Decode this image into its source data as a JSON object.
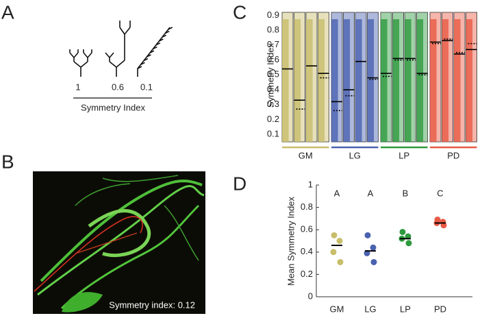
{
  "panel_labels": [
    "A",
    "B",
    "C",
    "D"
  ],
  "panel_a": {
    "labels": [
      "1",
      "0.6",
      "0.1"
    ],
    "axis_label": "Symmetry Index"
  },
  "panel_b": {
    "annotation": "Symmetry index: 0.12"
  },
  "chart_data": [
    {
      "type": "strip-histogram",
      "ylabel": "Symmetry Index",
      "ylim": [
        0.05,
        0.92
      ],
      "yticks": [
        0.1,
        0.2,
        0.3,
        0.4,
        0.5,
        0.6,
        0.7,
        0.8,
        0.9
      ],
      "groups": [
        {
          "name": "GM",
          "color": "#c8bd6a",
          "means": [
            0.54,
            0.33,
            0.56,
            0.51
          ],
          "medians": [
            null,
            0.27,
            0.56,
            0.48
          ]
        },
        {
          "name": "LG",
          "color": "#4a62b0",
          "means": [
            0.32,
            0.4,
            0.59,
            0.48
          ],
          "medians": [
            0.26,
            0.36,
            0.59,
            0.47
          ]
        },
        {
          "name": "LP",
          "color": "#2e9a3e",
          "means": [
            0.51,
            0.61,
            0.61,
            0.51
          ],
          "medians": [
            0.49,
            0.6,
            0.6,
            0.5
          ]
        },
        {
          "name": "PD",
          "color": "#e85a45",
          "means": [
            0.72,
            0.73,
            0.64,
            0.67
          ],
          "medians": [
            0.71,
            0.74,
            0.65,
            0.71
          ]
        }
      ]
    },
    {
      "type": "dot",
      "ylabel": "Mean Symmetry Index",
      "ylim": [
        0,
        1
      ],
      "yticks": [
        0,
        0.2,
        0.4,
        0.6,
        0.8,
        1
      ],
      "categories": [
        "GM",
        "LG",
        "LP",
        "PD"
      ],
      "letters": [
        "A",
        "A",
        "B",
        "C"
      ],
      "colors": [
        "#c8bd6a",
        "#4a62b0",
        "#2e9a3e",
        "#e85a45"
      ],
      "points": [
        [
          0.55,
          0.5,
          0.4,
          0.31
        ],
        [
          0.55,
          0.44,
          0.39,
          0.31
        ],
        [
          0.58,
          0.54,
          0.52,
          0.48
        ],
        [
          0.69,
          0.67,
          0.66,
          0.64
        ]
      ],
      "means": [
        0.46,
        0.41,
        0.52,
        0.66
      ]
    }
  ]
}
